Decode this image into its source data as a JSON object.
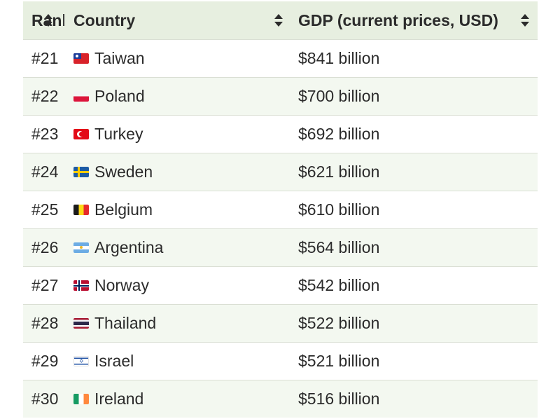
{
  "header": {
    "rank_label": "Rank",
    "country_label": "Country",
    "gdp_label": "GDP (current prices, USD)"
  },
  "rows": [
    {
      "rank": "#21",
      "country": "Taiwan",
      "flag": "taiwan-flag-icon",
      "gdp": "$841 billion"
    },
    {
      "rank": "#22",
      "country": "Poland",
      "flag": "poland-flag-icon",
      "gdp": "$700 billion"
    },
    {
      "rank": "#23",
      "country": "Turkey",
      "flag": "turkey-flag-icon",
      "gdp": "$692 billion"
    },
    {
      "rank": "#24",
      "country": "Sweden",
      "flag": "sweden-flag-icon",
      "gdp": "$621 billion"
    },
    {
      "rank": "#25",
      "country": "Belgium",
      "flag": "belgium-flag-icon",
      "gdp": "$610 billion"
    },
    {
      "rank": "#26",
      "country": "Argentina",
      "flag": "argentina-flag-icon",
      "gdp": "$564 billion"
    },
    {
      "rank": "#27",
      "country": "Norway",
      "flag": "norway-flag-icon",
      "gdp": "$542 billion"
    },
    {
      "rank": "#28",
      "country": "Thailand",
      "flag": "thailand-flag-icon",
      "gdp": "$522 billion"
    },
    {
      "rank": "#29",
      "country": "Israel",
      "flag": "israel-flag-icon",
      "gdp": "$521 billion"
    },
    {
      "rank": "#30",
      "country": "Ireland",
      "flag": "ireland-flag-icon",
      "gdp": "$516 billion"
    }
  ],
  "colors": {
    "header_bg": "#e7efe0",
    "alt_row_bg": "#f3f8f0",
    "row_border": "#dadfd4",
    "text": "#2b2b2b"
  }
}
